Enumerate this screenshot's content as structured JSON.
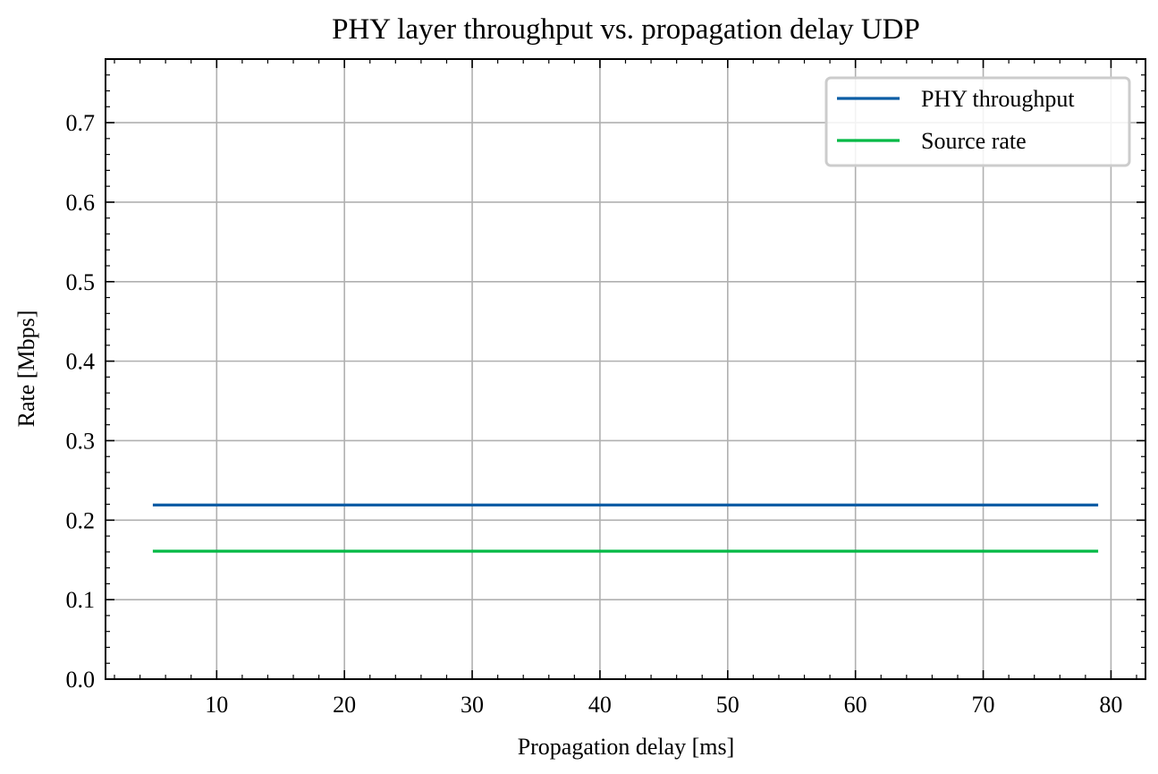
{
  "chart_data": {
    "type": "line",
    "title": "PHY layer throughput vs. propagation delay UDP",
    "xlabel": "Propagation delay [ms]",
    "ylabel": "Rate [Mbps]",
    "xlim": [
      1.3,
      82.7
    ],
    "ylim": [
      0.0,
      0.78
    ],
    "xticks": [
      10,
      20,
      30,
      40,
      50,
      60,
      70,
      80
    ],
    "yticks": [
      0.0,
      0.1,
      0.2,
      0.3,
      0.4,
      0.5,
      0.6,
      0.7
    ],
    "xtick_labels": [
      "10",
      "20",
      "30",
      "40",
      "50",
      "60",
      "70",
      "80"
    ],
    "ytick_labels": [
      "0.0",
      "0.1",
      "0.2",
      "0.3",
      "0.4",
      "0.5",
      "0.6",
      "0.7"
    ],
    "grid": true,
    "legend_position": "top-right",
    "series": [
      {
        "name": "PHY throughput",
        "color": "#0C5DA5",
        "x": [
          5,
          79
        ],
        "y": [
          0.219,
          0.219
        ]
      },
      {
        "name": "Source rate",
        "color": "#00B945",
        "x": [
          5,
          79
        ],
        "y": [
          0.161,
          0.161
        ]
      }
    ]
  }
}
